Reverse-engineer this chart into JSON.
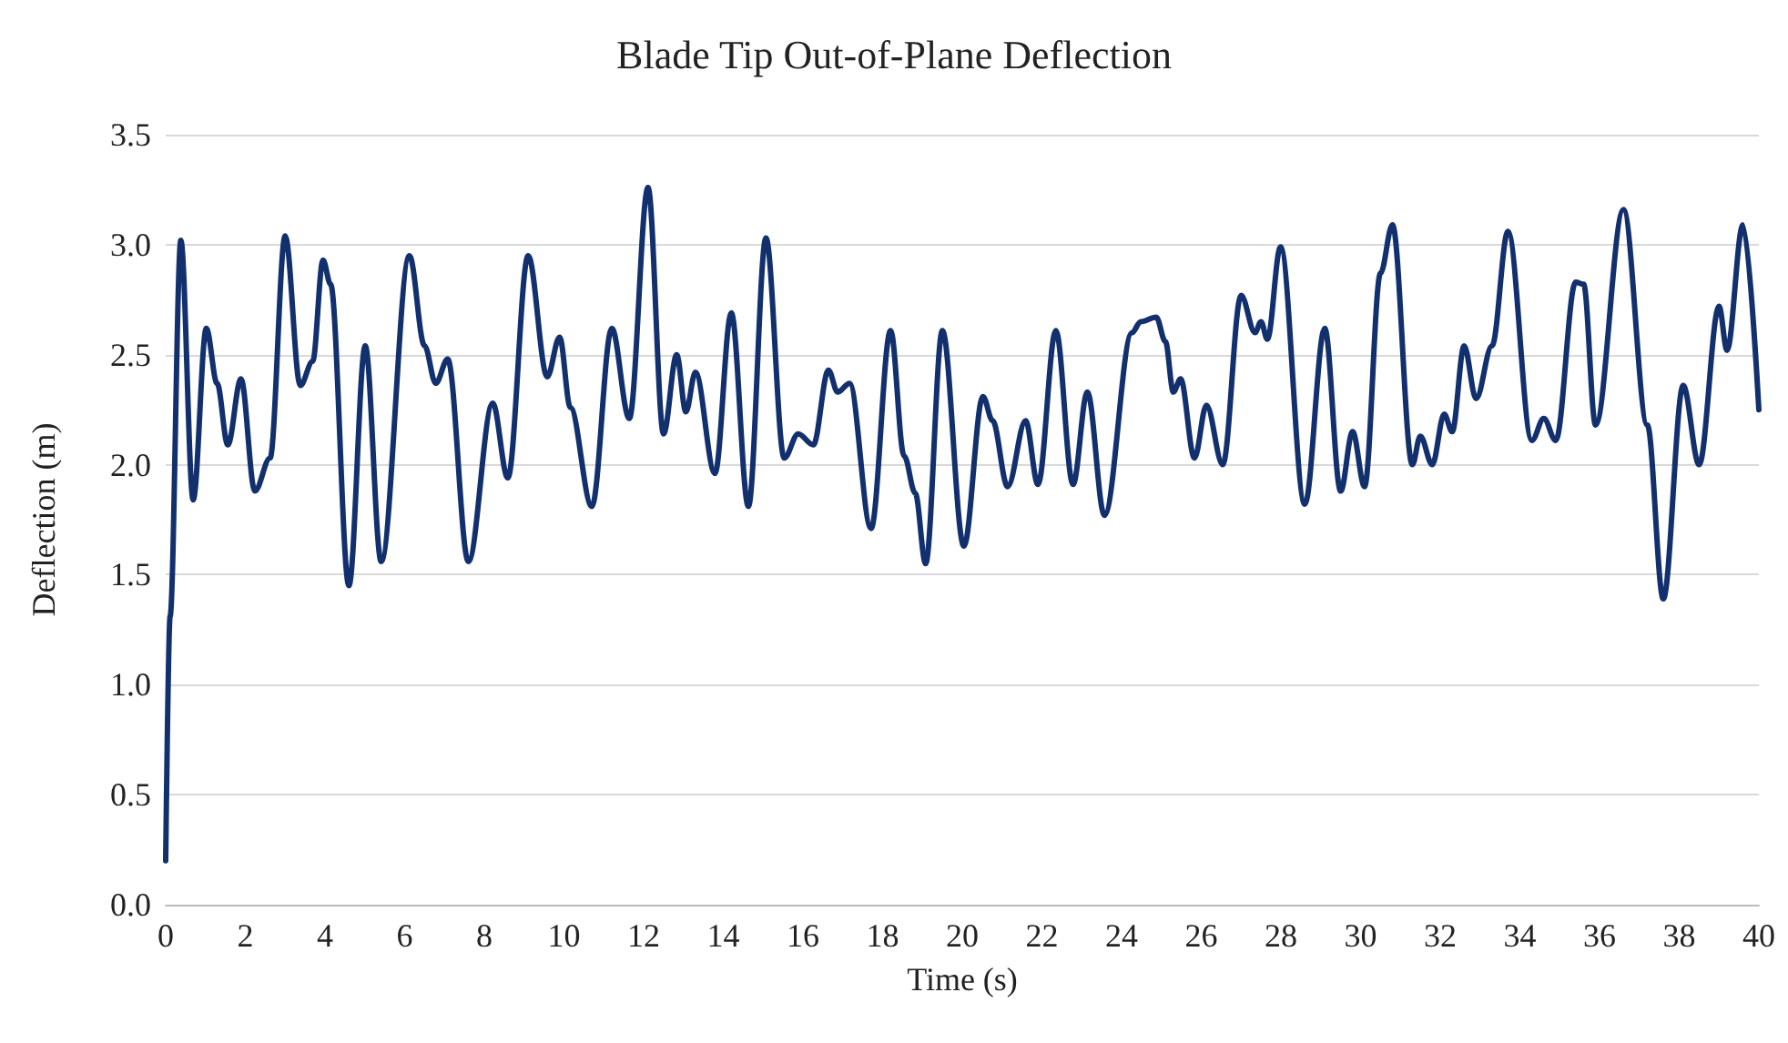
{
  "chart_data": {
    "type": "line",
    "title": "Blade Tip Out-of-Plane Deflection",
    "xlabel": "Time (s)",
    "ylabel": "Deflection (m)",
    "x": [
      0,
      0.11,
      0.38,
      0.69,
      1.02,
      1.29,
      1.56,
      1.89,
      2.24,
      2.62,
      3.0,
      3.38,
      3.69,
      3.95,
      4.14,
      4.6,
      5.01,
      5.41,
      6.12,
      6.5,
      6.78,
      7.08,
      7.6,
      8.21,
      8.59,
      9.1,
      9.58,
      9.89,
      10.16,
      10.7,
      11.2,
      11.64,
      12.11,
      12.5,
      12.83,
      13.06,
      13.3,
      13.79,
      14.2,
      14.63,
      15.07,
      15.53,
      15.88,
      16.26,
      16.64,
      16.87,
      17.17,
      17.71,
      18.2,
      18.54,
      18.82,
      19.08,
      19.5,
      20.04,
      20.52,
      20.76,
      21.14,
      21.59,
      21.9,
      22.35,
      22.78,
      23.14,
      23.57,
      24.26,
      24.48,
      24.87,
      25.1,
      25.3,
      25.48,
      25.83,
      26.13,
      26.54,
      27.0,
      27.35,
      27.5,
      27.66,
      27.99,
      28.6,
      29.1,
      29.5,
      29.8,
      30.1,
      30.5,
      30.8,
      31.3,
      31.5,
      31.8,
      32.1,
      32.3,
      32.6,
      32.9,
      33.3,
      33.7,
      34.3,
      34.6,
      34.9,
      35.4,
      35.6,
      35.9,
      36.6,
      37.2,
      37.6,
      38.1,
      38.5,
      39.0,
      39.2,
      39.6,
      40.0
    ],
    "series": [
      {
        "color": "#13306e",
        "values": [
          0.2,
          1.31,
          3.02,
          1.84,
          2.62,
          2.37,
          2.09,
          2.39,
          1.88,
          2.03,
          3.04,
          2.36,
          2.47,
          2.93,
          2.82,
          1.45,
          2.54,
          1.56,
          2.95,
          2.54,
          2.37,
          2.48,
          1.56,
          2.28,
          1.94,
          2.95,
          2.4,
          2.58,
          2.26,
          1.81,
          2.62,
          2.21,
          3.26,
          2.14,
          2.5,
          2.24,
          2.42,
          1.96,
          2.69,
          1.81,
          3.03,
          2.03,
          2.14,
          2.09,
          2.43,
          2.33,
          2.37,
          1.71,
          2.61,
          2.04,
          1.87,
          1.55,
          2.61,
          1.63,
          2.31,
          2.2,
          1.9,
          2.2,
          1.91,
          2.61,
          1.91,
          2.33,
          1.77,
          2.6,
          2.65,
          2.67,
          2.56,
          2.33,
          2.39,
          2.03,
          2.27,
          2.0,
          2.77,
          2.6,
          2.65,
          2.57,
          2.99,
          1.82,
          2.62,
          1.88,
          2.15,
          1.9,
          2.87,
          3.09,
          2.0,
          2.13,
          2.0,
          2.23,
          2.15,
          2.54,
          2.3,
          2.54,
          3.06,
          2.11,
          2.21,
          2.11,
          2.83,
          2.82,
          2.18,
          3.16,
          2.18,
          1.39,
          2.36,
          2.0,
          2.72,
          2.52,
          3.09,
          2.25
        ]
      }
    ],
    "xlim": [
      0,
      40
    ],
    "xticks": [
      0,
      2,
      4,
      6,
      8,
      10,
      12,
      14,
      16,
      18,
      20,
      22,
      24,
      26,
      28,
      30,
      32,
      34,
      36,
      38,
      40
    ],
    "ylim": [
      0,
      3.5
    ],
    "yticks": [
      {
        "value": 0,
        "label": "0.0"
      },
      {
        "value": 0.5,
        "label": "0.5"
      },
      {
        "value": 1,
        "label": "1.0"
      },
      {
        "value": 1.5,
        "label": "1.5"
      },
      {
        "value": 2,
        "label": "2.0"
      },
      {
        "value": 2.5,
        "label": "2.5"
      },
      {
        "value": 3,
        "label": "3.0"
      },
      {
        "value": 3.5,
        "label": "3.5"
      }
    ],
    "grid": "y",
    "marker": "none",
    "line_style": "solid"
  }
}
